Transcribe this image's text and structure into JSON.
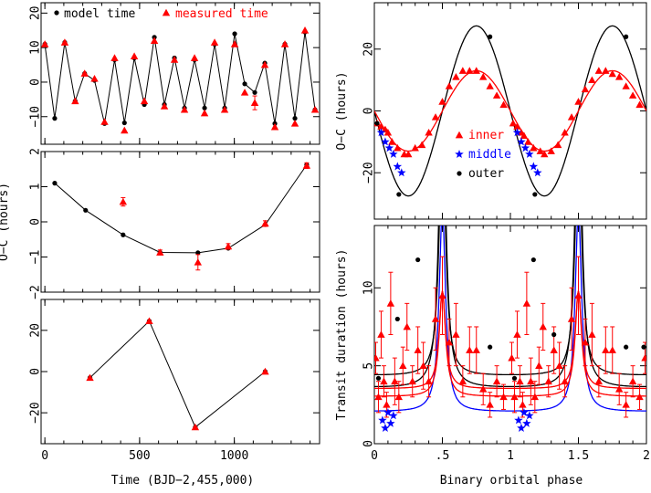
{
  "xlabel_left": "Time (BJD−2,455,000)",
  "xlabel_right": "Binary orbital phase",
  "colors": {
    "model": "#000000",
    "measured": "#ff0000",
    "inner": "#ff0000",
    "middle": "#0000ff",
    "outer": "#000000"
  },
  "chart_data": [
    {
      "type": "scatter",
      "panel": "left-top",
      "xlim": [
        -20,
        1450
      ],
      "ylim": [
        -18,
        23
      ],
      "xticks": [
        0,
        500,
        1000
      ],
      "yticks": [
        -10,
        0,
        10,
        20
      ],
      "ytick_labels": [
        "−10",
        "0",
        "10",
        "20"
      ],
      "legend": [
        {
          "name": "model time",
          "marker": "dot",
          "color": "#000000"
        },
        {
          "name": "measured time",
          "marker": "triangle",
          "color": "#ff0000"
        }
      ],
      "series": [
        {
          "name": "model time",
          "marker": "dot",
          "line": true,
          "x": [
            0,
            52,
            105,
            160,
            210,
            262,
            315,
            368,
            420,
            472,
            525,
            578,
            631,
            684,
            737,
            790,
            843,
            896,
            949,
            1002,
            1055,
            1108,
            1161,
            1214,
            1267,
            1320,
            1373,
            1426
          ],
          "y": [
            11,
            -10.5,
            11.5,
            -5.5,
            2.5,
            0.5,
            -12,
            6.5,
            -11.8,
            7,
            -6.5,
            13,
            -6.5,
            7,
            -7.5,
            6.5,
            -7.5,
            11,
            -7.5,
            14,
            -0.5,
            -3,
            5.5,
            -12,
            11,
            -10.5,
            14.5,
            -8
          ]
        },
        {
          "name": "measured time",
          "marker": "triangle",
          "x": [
            0,
            105,
            160,
            210,
            262,
            315,
            368,
            420,
            472,
            525,
            578,
            631,
            684,
            737,
            790,
            843,
            896,
            949,
            1002,
            1055,
            1108,
            1161,
            1214,
            1267,
            1320,
            1373,
            1426
          ],
          "y": [
            11,
            11.5,
            -5.5,
            2.5,
            1,
            -11.5,
            7,
            -14,
            7.5,
            -5.5,
            12,
            -7,
            6.5,
            -8,
            7,
            -9,
            11.5,
            -8,
            11,
            -3,
            -6,
            5,
            -13,
            11,
            -12,
            15,
            -8
          ],
          "err": [
            0,
            0,
            0,
            0,
            0,
            0,
            0,
            0,
            0,
            0,
            0,
            0,
            0,
            0,
            0,
            0,
            0,
            0,
            0,
            0,
            2,
            0,
            0,
            0,
            0,
            0,
            0
          ]
        }
      ]
    },
    {
      "type": "scatter",
      "panel": "left-middle",
      "ylabel": "O−C (hours)",
      "xlim": [
        -20,
        1450
      ],
      "ylim": [
        -2,
        2
      ],
      "xticks": [
        0,
        500,
        1000
      ],
      "yticks": [
        -2,
        -1,
        0,
        1,
        2
      ],
      "ytick_labels": [
        "−2",
        "−1",
        "0",
        "1",
        "2"
      ],
      "series": [
        {
          "name": "model",
          "marker": "dot",
          "line": true,
          "x": [
            52,
            215,
            413,
            608,
            808,
            968,
            1163,
            1382
          ],
          "y": [
            1.1,
            0.33,
            -0.37,
            -0.87,
            -0.88,
            -0.75,
            -0.08,
            1.62
          ]
        },
        {
          "name": "measured",
          "marker": "triangle",
          "x": [
            413,
            608,
            808,
            968,
            1163,
            1382
          ],
          "y": [
            0.57,
            -0.87,
            -1.15,
            -0.7,
            -0.05,
            1.6
          ],
          "err": [
            0.12,
            0.07,
            0.22,
            0.08,
            0.08,
            0.08
          ]
        }
      ]
    },
    {
      "type": "line",
      "panel": "left-bottom",
      "xlabel": "Time (BJD−2,455,000)",
      "xlim": [
        -20,
        1450
      ],
      "ylim": [
        -35,
        35
      ],
      "xticks": [
        0,
        500,
        1000
      ],
      "xtick_labels": [
        "0",
        "500",
        "1000"
      ],
      "yticks": [
        -20,
        0,
        20
      ],
      "ytick_labels": [
        "−20",
        "0",
        "20"
      ],
      "series": [
        {
          "name": "model",
          "marker": "dot",
          "line": true,
          "x": [
            238,
            551,
            794,
            1163
          ],
          "y": [
            -3,
            24.5,
            -27,
            0
          ]
        },
        {
          "name": "measured",
          "marker": "triangle",
          "x": [
            238,
            551,
            794,
            1163
          ],
          "y": [
            -3,
            24.5,
            -27,
            0
          ]
        }
      ]
    },
    {
      "type": "scatter",
      "panel": "right-top",
      "ylabel": "O−C (hours)",
      "xlim": [
        0,
        2
      ],
      "ylim": [
        -35,
        35
      ],
      "xticks": [
        0,
        0.5,
        1,
        1.5,
        2
      ],
      "yticks": [
        -20,
        0,
        20
      ],
      "ytick_labels": [
        "−20",
        "0",
        "20"
      ],
      "legend": [
        {
          "name": "inner",
          "marker": "triangle",
          "color": "#ff0000"
        },
        {
          "name": "middle",
          "marker": "star",
          "color": "#0000ff"
        },
        {
          "name": "outer",
          "marker": "dot",
          "color": "#000000"
        }
      ],
      "curves": [
        {
          "name": "outer",
          "amplitude": 27.5,
          "phase_max": 0.75
        },
        {
          "name": "inner",
          "amplitude": 13,
          "phase_max": 0.75
        }
      ],
      "series": [
        {
          "name": "inner",
          "marker": "triangle",
          "x": [
            0.02,
            0.05,
            0.08,
            0.1,
            0.13,
            0.17,
            0.22,
            0.25,
            0.3,
            0.35,
            0.4,
            0.45,
            0.5,
            0.55,
            0.6,
            0.65,
            0.7,
            0.75,
            0.8,
            0.85,
            0.9,
            0.95,
            1.02,
            1.05,
            1.08,
            1.1,
            1.13,
            1.17,
            1.22,
            1.25,
            1.3,
            1.35,
            1.4,
            1.45,
            1.5,
            1.55,
            1.6,
            1.65,
            1.7,
            1.75,
            1.8,
            1.85,
            1.9,
            1.95
          ],
          "y": [
            -4,
            -5,
            -6,
            -7,
            -10,
            -12,
            -14,
            -14,
            -12,
            -11,
            -7,
            -2,
            3,
            8,
            11,
            13,
            13,
            13,
            11,
            8,
            5,
            2,
            -4,
            -5,
            -7,
            -8,
            -10,
            -12,
            -13,
            -14,
            -13,
            -11,
            -7,
            -2,
            3,
            7,
            10,
            13,
            13,
            12,
            11,
            8,
            5,
            2
          ]
        },
        {
          "name": "middle",
          "marker": "star",
          "x": [
            0.05,
            0.08,
            0.11,
            0.14,
            0.17,
            0.2,
            1.05,
            1.08,
            1.11,
            1.14,
            1.17,
            1.2
          ],
          "y": [
            -7,
            -10,
            -12,
            -14,
            -18,
            -20,
            -7,
            -10,
            -12,
            -14,
            -18,
            -20
          ]
        },
        {
          "name": "outer",
          "marker": "dot",
          "x": [
            0.02,
            0.18,
            0.85,
            1.18,
            1.85
          ],
          "y": [
            -4,
            -27,
            24,
            -27,
            24
          ]
        }
      ]
    },
    {
      "type": "scatter",
      "panel": "right-bottom",
      "xlabel": "Binary orbital phase",
      "ylabel": "Transit duration (hours)",
      "xlim": [
        0,
        2
      ],
      "ylim": [
        0,
        14
      ],
      "xticks": [
        0,
        0.5,
        1,
        1.5,
        2
      ],
      "xtick_labels": [
        "0",
        ".5",
        "1",
        "1.5",
        "2"
      ],
      "yticks": [
        0,
        5,
        10
      ],
      "ytick_labels": [
        "0",
        "5",
        "10"
      ],
      "curves": [
        {
          "name": "outer",
          "min": 3.5,
          "peak": 24,
          "phase_peak": 0.5
        },
        {
          "name": "outer",
          "min": 4.3,
          "peak": 20,
          "phase_peak": 0.5
        },
        {
          "name": "middle",
          "min": 2.0,
          "peak": 15,
          "phase_peak": 0.5
        },
        {
          "name": "inner",
          "min": 3.0,
          "peak": 9.8,
          "phase_peak": 0.5
        },
        {
          "name": "inner",
          "min": 3.5,
          "peak": 9.8,
          "phase_peak": 0.5
        }
      ],
      "series": [
        {
          "name": "inner",
          "marker": "triangle",
          "x": [
            0.01,
            0.03,
            0.05,
            0.07,
            0.09,
            0.12,
            0.15,
            0.18,
            0.21,
            0.24,
            0.28,
            0.32,
            0.36,
            0.4,
            0.45,
            0.5,
            0.55,
            0.6,
            0.65,
            0.7,
            0.75,
            0.8,
            0.85,
            0.9,
            0.95,
            1.01,
            1.03,
            1.05,
            1.07,
            1.09,
            1.12,
            1.15,
            1.18,
            1.21,
            1.24,
            1.28,
            1.32,
            1.36,
            1.4,
            1.45,
            1.5,
            1.55,
            1.6,
            1.65,
            1.7,
            1.75,
            1.8,
            1.85,
            1.9,
            1.95,
            1.99
          ],
          "y": [
            5.5,
            3,
            7,
            4,
            2.5,
            9,
            4,
            3,
            5,
            7.5,
            4,
            6,
            5,
            4,
            8,
            9.5,
            6.5,
            7,
            4,
            6,
            6,
            3.5,
            2.5,
            4,
            3,
            5.5,
            3,
            7,
            4,
            2.5,
            9,
            4,
            3,
            5,
            7.5,
            4,
            6,
            5,
            4,
            8,
            9.5,
            6.5,
            7,
            4,
            6,
            6,
            3.5,
            2.5,
            4,
            3,
            5.5
          ],
          "err": [
            1,
            1,
            1.5,
            1,
            0.8,
            2,
            1.5,
            1,
            1.2,
            1.5,
            1,
            1.5,
            1.5,
            1,
            2,
            2.5,
            1.5,
            2,
            1,
            1.5,
            1.5,
            1,
            0.8,
            1,
            0.8,
            1,
            1,
            1.5,
            1,
            0.8,
            2,
            1.5,
            1,
            1.2,
            1.5,
            1,
            1.5,
            1.5,
            1,
            2,
            2.5,
            1.5,
            2,
            1,
            1.5,
            1.5,
            1,
            0.8,
            1,
            0.8,
            1
          ]
        },
        {
          "name": "middle",
          "marker": "star",
          "x": [
            0.06,
            0.08,
            0.1,
            0.12,
            0.14,
            1.06,
            1.08,
            1.1,
            1.12,
            1.14
          ],
          "y": [
            1.5,
            1.0,
            2.0,
            1.3,
            1.8,
            1.5,
            1.0,
            2.0,
            1.3,
            1.8
          ]
        },
        {
          "name": "outer",
          "marker": "dot",
          "x": [
            0.03,
            0.17,
            0.32,
            0.85,
            1.03,
            1.17,
            1.32,
            1.85,
            1.98
          ],
          "y": [
            4.2,
            8,
            11.8,
            6.2,
            4.2,
            11.8,
            7,
            6.2,
            6.2
          ]
        }
      ]
    }
  ]
}
